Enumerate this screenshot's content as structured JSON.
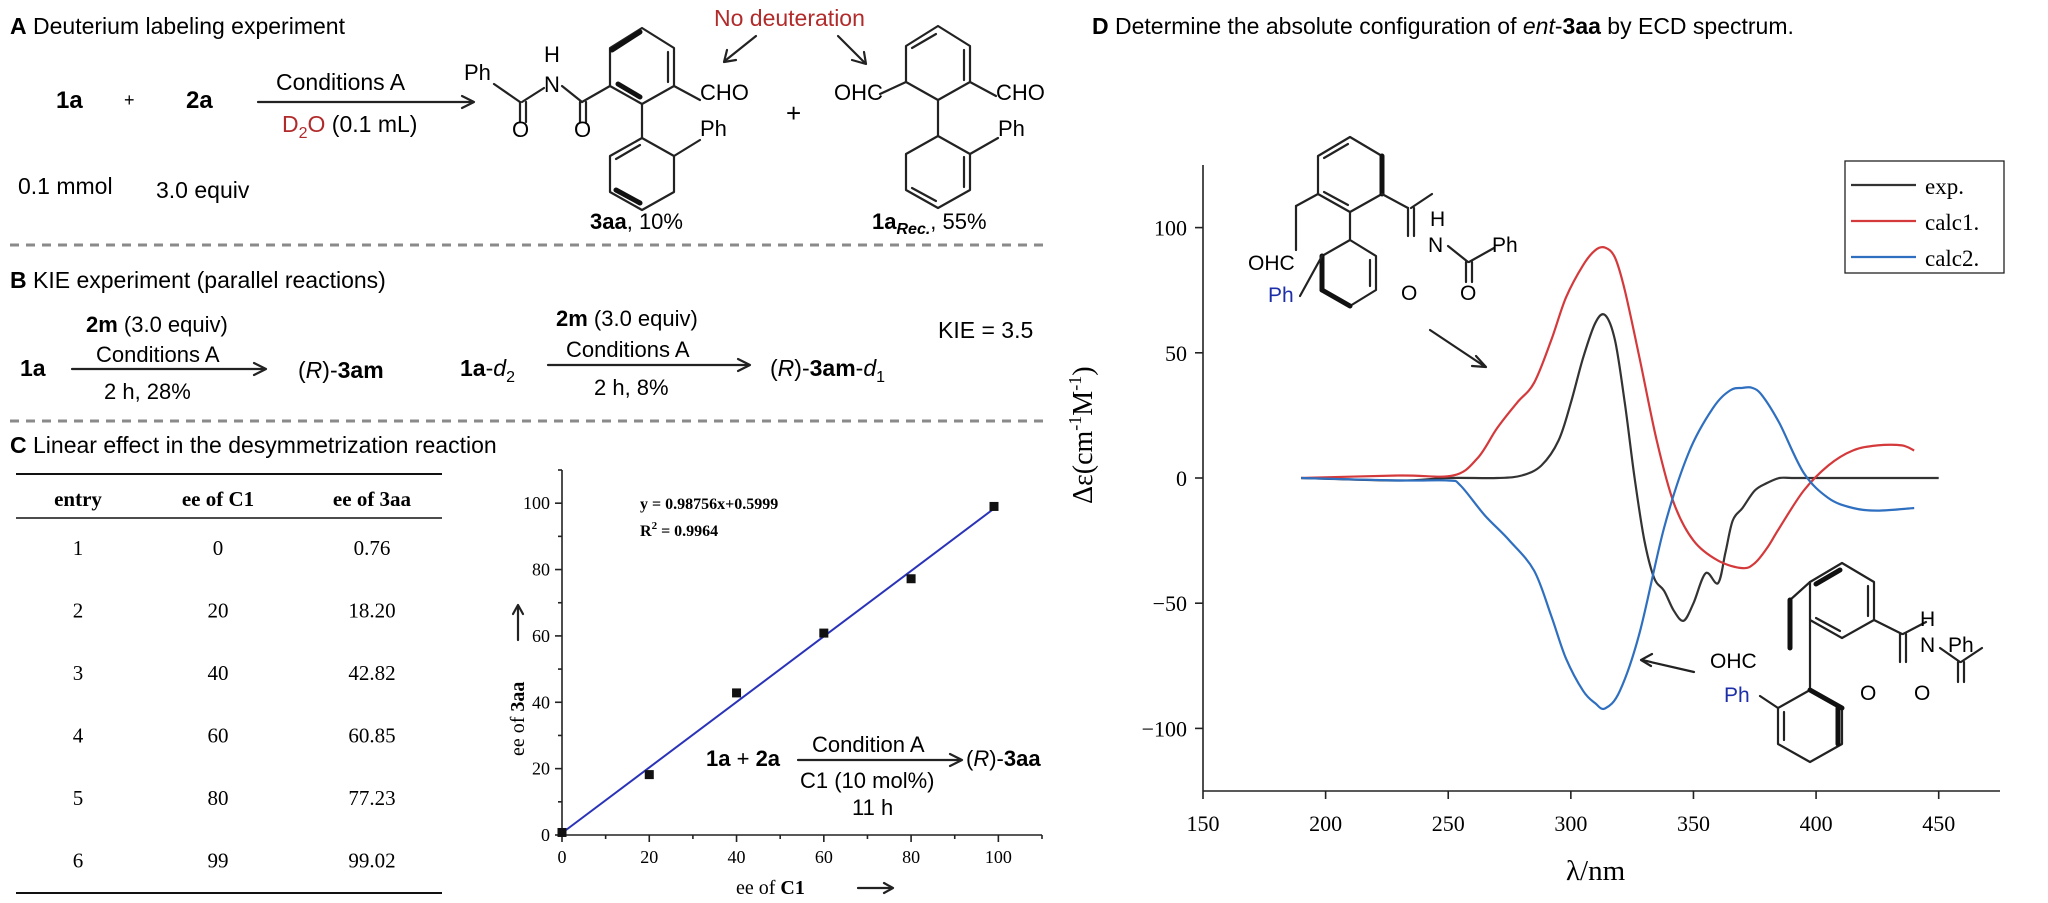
{
  "panelA": {
    "letter": "A",
    "title": "Deuterium labeling experiment",
    "r1": "1a",
    "plus": "+",
    "r2": "2a",
    "cond_top": "Conditions A",
    "cond_d2o_a": "D",
    "cond_d2o_sub": "2",
    "cond_d2o_b": "O",
    "cond_amount": " (0.1 mL)",
    "r1_amount": "0.1 mmol",
    "r2_amount": "3.0 equiv",
    "no_deut": "No deuteration",
    "p1_bold": "3aa",
    "p1_rest": ", 10%",
    "p2_bold": "1a",
    "p2_sub": "Rec.",
    "p2_rest": ", 55%",
    "ph": "Ph",
    "cho": "CHO",
    "ohc": "OHC",
    "n": "N",
    "h": "H",
    "o": "O",
    "colors": {
      "red": "#b22b2b"
    }
  },
  "panelB": {
    "letter": "B",
    "title": "KIE experiment (parallel reactions)",
    "s1": "1a",
    "reag1_bold": "2m",
    "reag1_rest": " (3.0 equiv)",
    "cond1": "Conditions A",
    "time1": "2 h, 28%",
    "prod1_a": "(",
    "prod1_r": "R",
    "prod1_b": ")-",
    "prod1_bold": "3am",
    "s2_bold": "1a",
    "s2_rest": "-",
    "s2_italic": "d",
    "s2_sub": "2",
    "reag2_bold": "2m",
    "reag2_rest": " (3.0 equiv)",
    "cond2": "Conditions A",
    "time2": "2 h, 8%",
    "prod2_a": "(",
    "prod2_r": "R",
    "prod2_b": ")-",
    "prod2_bold": "3am",
    "prod2_rest": "-",
    "prod2_italic": "d",
    "prod2_sub": "1",
    "kie": "KIE = 3.5"
  },
  "panelC": {
    "letter": "C",
    "title": "Linear effect in the desymmetrization reaction",
    "columns": [
      "entry",
      "ee of C1",
      "ee of 3aa"
    ],
    "rows": [
      [
        "1",
        "0",
        "0.76"
      ],
      [
        "2",
        "20",
        "18.20"
      ],
      [
        "3",
        "40",
        "42.82"
      ],
      [
        "4",
        "60",
        "60.85"
      ],
      [
        "5",
        "80",
        "77.23"
      ],
      [
        "6",
        "99",
        "99.02"
      ]
    ],
    "fit_eq": "y = 0.98756x+0.5999",
    "r2_a": "R",
    "r2_sup": "2",
    "r2_b": " = 0.9964",
    "xlabel_a": "ee of ",
    "xlabel_bold": "C1",
    "ylabel_a": "ee of ",
    "ylabel_bold": "3aa",
    "rxn_a": "1a",
    "rxn_plus": " + ",
    "rxn_b": "2a",
    "rxn_cond": "Condition A",
    "rxn_cat": "C1 (10 mol%)",
    "rxn_time": "11 h",
    "rxn_prod_a": "(",
    "rxn_prod_r": "R",
    "rxn_prod_b": ")-",
    "rxn_prod_bold": "3aa",
    "colors": {
      "fit": "#2a33b8",
      "points": "#111111"
    }
  },
  "panelD": {
    "letter": "D",
    "title_a": "Determine the absolute configuration of ",
    "title_italic": "ent",
    "title_b": "-",
    "title_bold": "3aa",
    "title_c": " by ECD spectrum.",
    "ylabel": "Δε(cm",
    "ylabel_sup1": "-1",
    "ylabel_mid": "M",
    "ylabel_sup2": "-1",
    "ylabel_end": ")",
    "xlabel": "λ/nm",
    "legend": [
      "exp.",
      "calc1.",
      "calc2."
    ],
    "mol1": {
      "ohc": "OHC",
      "ph": "Ph",
      "n": "N",
      "h": "H",
      "o1": "O",
      "o2": "O",
      "ph2": "Ph"
    },
    "mol2": {
      "ohc": "OHC",
      "ph": "Ph",
      "n": "N",
      "h": "H",
      "o1": "O",
      "o2": "O",
      "ph2": "Ph"
    },
    "colors": {
      "exp": "#333333",
      "calc1": "#d4393b",
      "calc2": "#2f6fc0",
      "ph_blue": "#1d2fa8"
    }
  },
  "chart_data": [
    {
      "type": "scatter",
      "title": "",
      "xlabel": "ee of C1",
      "ylabel": "ee of 3aa",
      "xlim": [
        0,
        110
      ],
      "ylim": [
        0,
        110
      ],
      "xticks": [
        0,
        20,
        40,
        60,
        80,
        100
      ],
      "yticks": [
        0,
        20,
        40,
        60,
        80,
        100
      ],
      "points": [
        [
          0,
          0.76
        ],
        [
          20,
          18.2
        ],
        [
          40,
          42.82
        ],
        [
          60,
          60.85
        ],
        [
          80,
          77.23
        ],
        [
          99,
          99.02
        ]
      ],
      "fit": {
        "slope": 0.98756,
        "intercept": 0.5999,
        "range": [
          0,
          99
        ]
      },
      "annotation": "y = 0.98756x+0.5999, R2 = 0.9964"
    },
    {
      "type": "line",
      "title": "",
      "xlabel": "λ/nm",
      "ylabel": "Δε(cm-1M-1)",
      "xlim": [
        150,
        475
      ],
      "ylim": [
        -125,
        125
      ],
      "xticks": [
        150,
        200,
        250,
        300,
        350,
        400,
        450
      ],
      "yticks": [
        -100,
        -50,
        0,
        50,
        100
      ],
      "legend_position": "top-right",
      "series": [
        {
          "name": "exp.",
          "x": [
            190,
            230,
            250,
            270,
            280,
            288,
            295,
            300,
            305,
            310,
            314,
            318,
            322,
            326,
            330,
            334,
            338,
            342,
            346,
            350,
            355,
            360,
            363,
            366,
            370,
            375,
            380,
            385,
            390,
            400,
            410,
            430,
            450
          ],
          "y": [
            0,
            -1,
            0,
            0,
            1,
            5,
            15,
            30,
            48,
            62,
            65,
            55,
            30,
            0,
            -25,
            -40,
            -45,
            -53,
            -57,
            -50,
            -38,
            -42,
            -30,
            -17,
            -12,
            -5,
            -2,
            0,
            0,
            0,
            0,
            0,
            0
          ]
        },
        {
          "name": "calc1.",
          "x": [
            190,
            230,
            252,
            262,
            270,
            278,
            285,
            292,
            298,
            305,
            310,
            314,
            318,
            322,
            328,
            335,
            342,
            350,
            360,
            370,
            375,
            380,
            385,
            395,
            405,
            415,
            425,
            435,
            440
          ],
          "y": [
            0,
            1,
            1,
            8,
            20,
            30,
            38,
            55,
            72,
            85,
            91,
            92,
            88,
            75,
            48,
            15,
            -10,
            -25,
            -33,
            -36,
            -34,
            -28,
            -20,
            -5,
            5,
            11,
            13,
            13,
            11
          ]
        },
        {
          "name": "calc2.",
          "x": [
            190,
            230,
            250,
            255,
            265,
            275,
            285,
            292,
            298,
            305,
            310,
            314,
            320,
            328,
            338,
            348,
            358,
            365,
            370,
            374,
            378,
            385,
            395,
            405,
            415,
            425,
            440
          ],
          "y": [
            0,
            -1,
            -1,
            -3,
            -15,
            -25,
            -37,
            -55,
            -72,
            -85,
            -90,
            -92,
            -85,
            -62,
            -20,
            10,
            28,
            35,
            36,
            36,
            33,
            22,
            2,
            -8,
            -12,
            -13,
            -12
          ]
        }
      ]
    }
  ]
}
